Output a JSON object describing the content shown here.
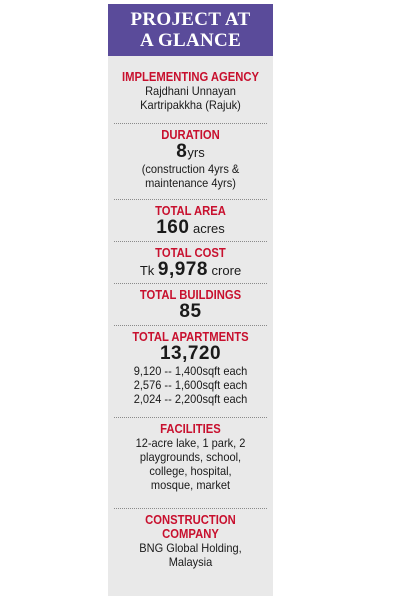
{
  "header": {
    "line1": "PROJECT AT",
    "line2": "A GLANCE"
  },
  "agency": {
    "title": "IMPLEMENTING AGENCY",
    "line1": "Rajdhani Unnayan",
    "line2": "Kartripakkha (Rajuk)"
  },
  "duration": {
    "title": "DURATION",
    "value": "8",
    "unit": "yrs",
    "line1": "(construction 4yrs &",
    "line2": "maintenance 4yrs)"
  },
  "area": {
    "title": "TOTAL AREA",
    "value": "160",
    "unit": " acres"
  },
  "cost": {
    "title": "TOTAL COST",
    "prefix": "Tk ",
    "value": "9,978",
    "unit": " crore"
  },
  "buildings": {
    "title": "TOTAL BUILDINGS",
    "value": "85"
  },
  "apartments": {
    "title": "TOTAL APARTMENTS",
    "value": "13,720",
    "lines": [
      "9,120 -- 1,400sqft each",
      "2,576 -- 1,600sqft each",
      "2,024 -- 2,200sqft each"
    ]
  },
  "facilities": {
    "title": "FACILITIES",
    "lines": [
      "12-acre lake, 1 park, 2",
      "playgrounds, school,",
      "college, hospital,",
      "mosque, market"
    ]
  },
  "company": {
    "title1": "CONSTRUCTION",
    "title2": "COMPANY",
    "line1": "BNG Global Holding,",
    "line2": "Malaysia"
  },
  "colors": {
    "header_bg": "#5a4b9a",
    "title_red": "#c8102e",
    "panel_bg": "#e9e9e9"
  }
}
